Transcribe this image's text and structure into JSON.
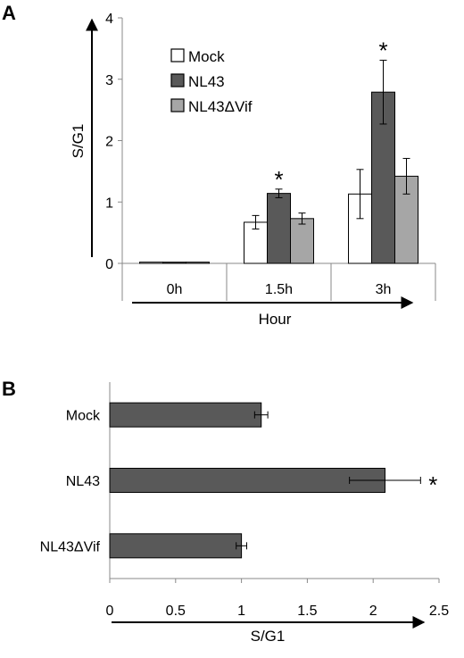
{
  "chart_data": [
    {
      "panel": "A",
      "type": "bar",
      "title": "",
      "xlabel": "Hour",
      "ylabel": "S/G1",
      "categories": [
        "0h",
        "1.5h",
        "3h"
      ],
      "ylim": [
        0,
        4
      ],
      "yticks": [
        "0",
        "1",
        "2",
        "3",
        "4"
      ],
      "grid": false,
      "legend": "top-left",
      "significance_marker": "*",
      "series": [
        {
          "name": "Mock",
          "color": "#ffffff",
          "values": [
            0.02,
            0.67,
            1.13
          ],
          "errors": [
            0.01,
            0.11,
            0.4
          ],
          "significant": [
            false,
            false,
            false
          ]
        },
        {
          "name": "NL43",
          "color": "#595959",
          "values": [
            0.02,
            1.14,
            2.79
          ],
          "errors": [
            0.01,
            0.07,
            0.52
          ],
          "significant": [
            false,
            true,
            true
          ]
        },
        {
          "name": "NL43ΔVif",
          "color": "#a6a6a6",
          "values": [
            0.02,
            0.73,
            1.42
          ],
          "errors": [
            0.01,
            0.09,
            0.29
          ],
          "significant": [
            false,
            false,
            false
          ]
        }
      ]
    },
    {
      "panel": "B",
      "type": "bar",
      "orientation": "horizontal",
      "title": "",
      "xlabel": "S/G1",
      "ylabel": "",
      "categories": [
        "Mock",
        "NL43",
        "NL43ΔVif"
      ],
      "values": [
        1.15,
        2.09,
        1.0
      ],
      "errors": [
        0.05,
        0.27,
        0.04
      ],
      "significant": [
        false,
        true,
        false
      ],
      "significance_marker": "*",
      "xlim": [
        0,
        2.5
      ],
      "xticks": [
        "0",
        "0.5",
        "1",
        "1.5",
        "2",
        "2.5"
      ],
      "grid": false,
      "color": "#595959"
    }
  ]
}
